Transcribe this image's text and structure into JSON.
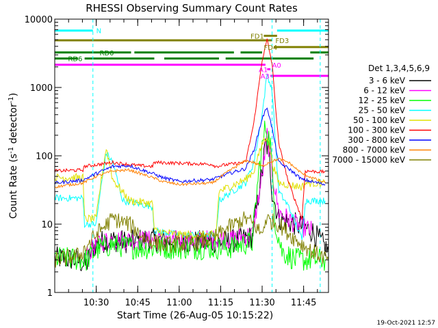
{
  "chart_data": {
    "type": "line",
    "title": "RHESSI Observing Summary Count Rates",
    "xlabel": "Start Time (26-Aug-05 10:15:22)",
    "ylabel": "Count Rate (s",
    "ylabel_sup": "-1",
    "ylabel_tail": " detector",
    "ylabel_sup2": "-1",
    "ylabel_end": ")",
    "yscale": "log",
    "ylim": [
      1,
      10000
    ],
    "xlim_minutes": [
      10.25,
      11.9
    ],
    "x_ticks": [
      {
        "m": 10.5,
        "label": "10:30"
      },
      {
        "m": 10.75,
        "label": "10:45"
      },
      {
        "m": 11.0,
        "label": "11:00"
      },
      {
        "m": 11.25,
        "label": "11:15"
      },
      {
        "m": 11.5,
        "label": "11:30"
      },
      {
        "m": 11.75,
        "label": "11:45"
      }
    ],
    "y_ticks": [
      {
        "v": 1,
        "label": "1"
      },
      {
        "v": 10,
        "label": "10"
      },
      {
        "v": 100,
        "label": "100"
      },
      {
        "v": 1000,
        "label": "1000"
      },
      {
        "v": 10000,
        "label": "10000"
      }
    ],
    "legend": {
      "placement": "right",
      "header": "Det 1,3,4,5,6,9",
      "entries": [
        {
          "label": "3 - 6 keV",
          "color": "#000000"
        },
        {
          "label": "6 - 12 keV",
          "color": "#ff00ff"
        },
        {
          "label": "12 - 25 keV",
          "color": "#00ff00"
        },
        {
          "label": "25 - 50 keV",
          "color": "#00ffff"
        },
        {
          "label": "50 - 100 keV",
          "color": "#e0e000"
        },
        {
          "label": "100 - 300 keV",
          "color": "#ff0000"
        },
        {
          "label": "300 - 800 keV",
          "color": "#0000ff"
        },
        {
          "label": "800 - 7000 keV",
          "color": "#ff8000"
        },
        {
          "label": "7000 - 15000 keV",
          "color": "#808000"
        }
      ]
    },
    "series": [
      {
        "label": "3 - 6 keV",
        "color": "#000000",
        "noise": 0.35,
        "points": [
          [
            10.25,
            3.2
          ],
          [
            10.38,
            3.0
          ],
          [
            10.44,
            2.5
          ],
          [
            10.48,
            4.5
          ],
          [
            10.52,
            5.5
          ],
          [
            10.6,
            5.8
          ],
          [
            10.7,
            5.5
          ],
          [
            10.8,
            6.0
          ],
          [
            11.0,
            5.5
          ],
          [
            11.3,
            5.5
          ],
          [
            11.38,
            6.0
          ],
          [
            11.44,
            6.5
          ],
          [
            11.5,
            60
          ],
          [
            11.52,
            150
          ],
          [
            11.54,
            120
          ],
          [
            11.56,
            30
          ],
          [
            11.6,
            12
          ],
          [
            11.7,
            10
          ],
          [
            11.8,
            8
          ],
          [
            11.9,
            4
          ]
        ]
      },
      {
        "label": "6 - 12 keV",
        "color": "#ff00ff",
        "noise": 0.3,
        "points": [
          [
            10.44,
            3.5
          ],
          [
            10.52,
            5.5
          ],
          [
            10.6,
            6.0
          ],
          [
            10.7,
            5.8
          ],
          [
            11.0,
            5.8
          ],
          [
            11.3,
            6.0
          ],
          [
            11.44,
            7.0
          ],
          [
            11.5,
            50
          ],
          [
            11.53,
            200
          ],
          [
            11.56,
            60
          ],
          [
            11.6,
            15
          ],
          [
            11.7,
            10
          ],
          [
            11.8,
            8
          ]
        ]
      },
      {
        "label": "12 - 25 keV",
        "color": "#00ff00",
        "noise": 0.35,
        "points": [
          [
            10.25,
            3.2
          ],
          [
            10.44,
            3.0
          ],
          [
            10.52,
            4.5
          ],
          [
            10.6,
            5.0
          ],
          [
            10.75,
            4.5
          ],
          [
            11.0,
            4.5
          ],
          [
            11.3,
            4.5
          ],
          [
            11.44,
            5.5
          ],
          [
            11.48,
            60
          ],
          [
            11.52,
            280
          ],
          [
            11.55,
            150
          ],
          [
            11.58,
            10
          ],
          [
            11.62,
            4
          ],
          [
            11.7,
            3
          ],
          [
            11.8,
            3
          ],
          [
            11.88,
            3
          ]
        ]
      },
      {
        "label": "25 - 50 keV",
        "color": "#00ffff",
        "noise": 0.1,
        "points": [
          [
            10.25,
            24
          ],
          [
            10.42,
            24
          ],
          [
            10.43,
            10
          ],
          [
            10.5,
            10
          ],
          [
            10.52,
            25
          ],
          [
            10.56,
            110
          ],
          [
            10.6,
            80
          ],
          [
            10.66,
            22
          ],
          [
            10.75,
            20
          ],
          [
            10.84,
            18
          ],
          [
            10.85,
            8
          ],
          [
            11.0,
            7
          ],
          [
            11.2,
            7
          ],
          [
            11.22,
            6
          ],
          [
            11.24,
            22
          ],
          [
            11.3,
            28
          ],
          [
            11.4,
            40
          ],
          [
            11.45,
            80
          ],
          [
            11.5,
            400
          ],
          [
            11.53,
            1600
          ],
          [
            11.56,
            900
          ],
          [
            11.6,
            30
          ],
          [
            11.66,
            18
          ],
          [
            11.74,
            6
          ],
          [
            11.76,
            22
          ],
          [
            11.88,
            22
          ]
        ]
      },
      {
        "label": "50 - 100 keV",
        "color": "#e0e000",
        "noise": 0.12,
        "points": [
          [
            10.25,
            48
          ],
          [
            10.42,
            48
          ],
          [
            10.43,
            12
          ],
          [
            10.5,
            12
          ],
          [
            10.52,
            30
          ],
          [
            10.56,
            130
          ],
          [
            10.6,
            45
          ],
          [
            10.7,
            22
          ],
          [
            10.84,
            20
          ],
          [
            10.85,
            8
          ],
          [
            11.0,
            7
          ],
          [
            11.2,
            7
          ],
          [
            11.22,
            6
          ],
          [
            11.24,
            30
          ],
          [
            11.3,
            35
          ],
          [
            11.4,
            45
          ],
          [
            11.45,
            60
          ],
          [
            11.5,
            150
          ],
          [
            11.53,
            200
          ],
          [
            11.56,
            80
          ],
          [
            11.6,
            40
          ],
          [
            11.74,
            35
          ],
          [
            11.76,
            40
          ],
          [
            11.88,
            40
          ]
        ]
      },
      {
        "label": "100 - 300 keV",
        "color": "#ff0000",
        "noise": 0.05,
        "points": [
          [
            10.25,
            60
          ],
          [
            10.42,
            62
          ],
          [
            10.43,
            70
          ],
          [
            10.6,
            80
          ],
          [
            10.75,
            72
          ],
          [
            10.84,
            70
          ],
          [
            10.85,
            80
          ],
          [
            11.0,
            78
          ],
          [
            11.2,
            75
          ],
          [
            11.22,
            70
          ],
          [
            11.3,
            75
          ],
          [
            11.4,
            80
          ],
          [
            11.45,
            300
          ],
          [
            11.5,
            2500
          ],
          [
            11.53,
            5000
          ],
          [
            11.56,
            2200
          ],
          [
            11.6,
            150
          ],
          [
            11.66,
            40
          ],
          [
            11.74,
            12
          ],
          [
            11.76,
            60
          ],
          [
            11.88,
            58
          ]
        ]
      },
      {
        "label": "300 - 800 keV",
        "color": "#0000ff",
        "noise": 0.05,
        "points": [
          [
            10.25,
            40
          ],
          [
            10.42,
            44
          ],
          [
            10.5,
            55
          ],
          [
            10.6,
            70
          ],
          [
            10.7,
            72
          ],
          [
            10.84,
            55
          ],
          [
            10.9,
            48
          ],
          [
            11.0,
            42
          ],
          [
            11.2,
            45
          ],
          [
            11.3,
            55
          ],
          [
            11.4,
            65
          ],
          [
            11.45,
            120
          ],
          [
            11.5,
            350
          ],
          [
            11.53,
            520
          ],
          [
            11.56,
            250
          ],
          [
            11.6,
            80
          ],
          [
            11.66,
            65
          ],
          [
            11.74,
            45
          ],
          [
            11.88,
            38
          ]
        ]
      },
      {
        "label": "800 - 7000 keV",
        "color": "#ff8000",
        "noise": 0.04,
        "points": [
          [
            10.25,
            35
          ],
          [
            10.42,
            40
          ],
          [
            10.5,
            50
          ],
          [
            10.6,
            60
          ],
          [
            10.7,
            62
          ],
          [
            10.84,
            48
          ],
          [
            10.9,
            42
          ],
          [
            11.0,
            38
          ],
          [
            11.2,
            40
          ],
          [
            11.3,
            60
          ],
          [
            11.4,
            85
          ],
          [
            11.45,
            80
          ],
          [
            11.5,
            70
          ],
          [
            11.54,
            80
          ],
          [
            11.6,
            90
          ],
          [
            11.66,
            80
          ],
          [
            11.74,
            55
          ],
          [
            11.88,
            40
          ]
        ]
      },
      {
        "label": "7000 - 15000 keV",
        "color": "#808000",
        "noise": 0.25,
        "points": [
          [
            10.25,
            3.0
          ],
          [
            10.4,
            3.5
          ],
          [
            10.45,
            5.0
          ],
          [
            10.52,
            8.0
          ],
          [
            10.6,
            12
          ],
          [
            10.7,
            10
          ],
          [
            10.8,
            6.0
          ],
          [
            10.9,
            5.0
          ],
          [
            11.0,
            5.0
          ],
          [
            11.2,
            6.0
          ],
          [
            11.3,
            9.0
          ],
          [
            11.4,
            12
          ],
          [
            11.45,
            10
          ],
          [
            11.5,
            7.0
          ],
          [
            11.52,
            12
          ],
          [
            11.6,
            10
          ],
          [
            11.7,
            6.0
          ],
          [
            11.8,
            4.0
          ],
          [
            11.9,
            3.0
          ]
        ]
      }
    ],
    "vlines_minutes": [
      10.48,
      11.56,
      11.85
    ],
    "flag_bars": [
      {
        "label": "N",
        "color": "#00ffff",
        "y": 6800,
        "segments": [
          [
            10.25,
            10.48
          ],
          [
            11.59,
            11.9
          ]
        ],
        "label_m": 10.5
      },
      {
        "label": "FD1",
        "color": "#808000",
        "y": 5700,
        "segments": [
          [
            11.51,
            11.59
          ]
        ],
        "label_m": 11.43
      },
      {
        "label": "FD3",
        "color": "#808000",
        "y": 4900,
        "segments": [
          [
            10.25,
            11.56
          ]
        ],
        "label_m": 11.58
      },
      {
        "label": "FD4",
        "color": "#808000",
        "y": 3900,
        "segments": [
          [
            11.57,
            11.9
          ]
        ],
        "label_m": 11.51
      },
      {
        "label": "RD0",
        "color": "#008000",
        "y": 3250,
        "segments": [
          [
            10.25,
            10.71
          ],
          [
            10.73,
            11.33
          ],
          [
            11.37,
            11.5
          ],
          [
            11.79,
            11.9
          ]
        ],
        "label_m": 10.52
      },
      {
        "label": "RD6",
        "color": "#008000",
        "y": 2650,
        "segments": [
          [
            10.25,
            10.39
          ],
          [
            10.43,
            10.85
          ],
          [
            10.91,
            11.24
          ],
          [
            11.28,
            11.81
          ]
        ],
        "label_m": 10.33
      },
      {
        "label": "A0",
        "color": "#ff00ff",
        "y": 2150,
        "segments": [
          [
            10.25,
            11.52
          ]
        ],
        "label_m": 11.56
      },
      {
        "label": "A1",
        "color": "#ff00ff",
        "y": 1850,
        "segments": [
          [
            11.53,
            11.55
          ]
        ],
        "label_m": 11.48
      },
      {
        "label": "A3",
        "color": "#ff00ff",
        "y": 1480,
        "segments": [
          [
            11.55,
            11.9
          ]
        ],
        "label_m": 11.49
      }
    ]
  },
  "footer": {
    "timestamp": "19-Oct-2021 12:57"
  }
}
